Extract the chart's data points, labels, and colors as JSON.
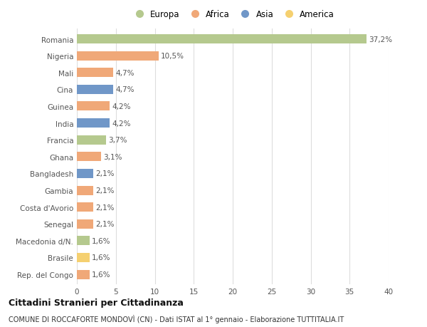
{
  "categories": [
    "Romania",
    "Nigeria",
    "Mali",
    "Cina",
    "Guinea",
    "India",
    "Francia",
    "Ghana",
    "Bangladesh",
    "Gambia",
    "Costa d'Avorio",
    "Senegal",
    "Macedonia d/N.",
    "Brasile",
    "Rep. del Congo"
  ],
  "values": [
    37.2,
    10.5,
    4.7,
    4.7,
    4.2,
    4.2,
    3.7,
    3.1,
    2.1,
    2.1,
    2.1,
    2.1,
    1.6,
    1.6,
    1.6
  ],
  "labels": [
    "37,2%",
    "10,5%",
    "4,7%",
    "4,7%",
    "4,2%",
    "4,2%",
    "3,7%",
    "3,1%",
    "2,1%",
    "2,1%",
    "2,1%",
    "2,1%",
    "1,6%",
    "1,6%",
    "1,6%"
  ],
  "colors": [
    "#b5c98e",
    "#f0a878",
    "#f0a878",
    "#7097c8",
    "#f0a878",
    "#7097c8",
    "#b5c98e",
    "#f0a878",
    "#7097c8",
    "#f0a878",
    "#f0a878",
    "#f0a878",
    "#b5c98e",
    "#f5d070",
    "#f0a878"
  ],
  "legend_labels": [
    "Europa",
    "Africa",
    "Asia",
    "America"
  ],
  "legend_colors": [
    "#b5c98e",
    "#f0a878",
    "#7097c8",
    "#f5d070"
  ],
  "xlim": [
    0,
    40
  ],
  "xticks": [
    0,
    5,
    10,
    15,
    20,
    25,
    30,
    35,
    40
  ],
  "title": "Cittadini Stranieri per Cittadinanza",
  "subtitle": "COMUNE DI ROCCAFORTE MONDOVÌ (CN) - Dati ISTAT al 1° gennaio - Elaborazione TUTTITALIA.IT",
  "bg_color": "#ffffff",
  "grid_color": "#dddddd",
  "bar_height": 0.55,
  "label_fontsize": 7.5,
  "tick_fontsize": 7.5,
  "title_fontsize": 9.0,
  "subtitle_fontsize": 7.0
}
